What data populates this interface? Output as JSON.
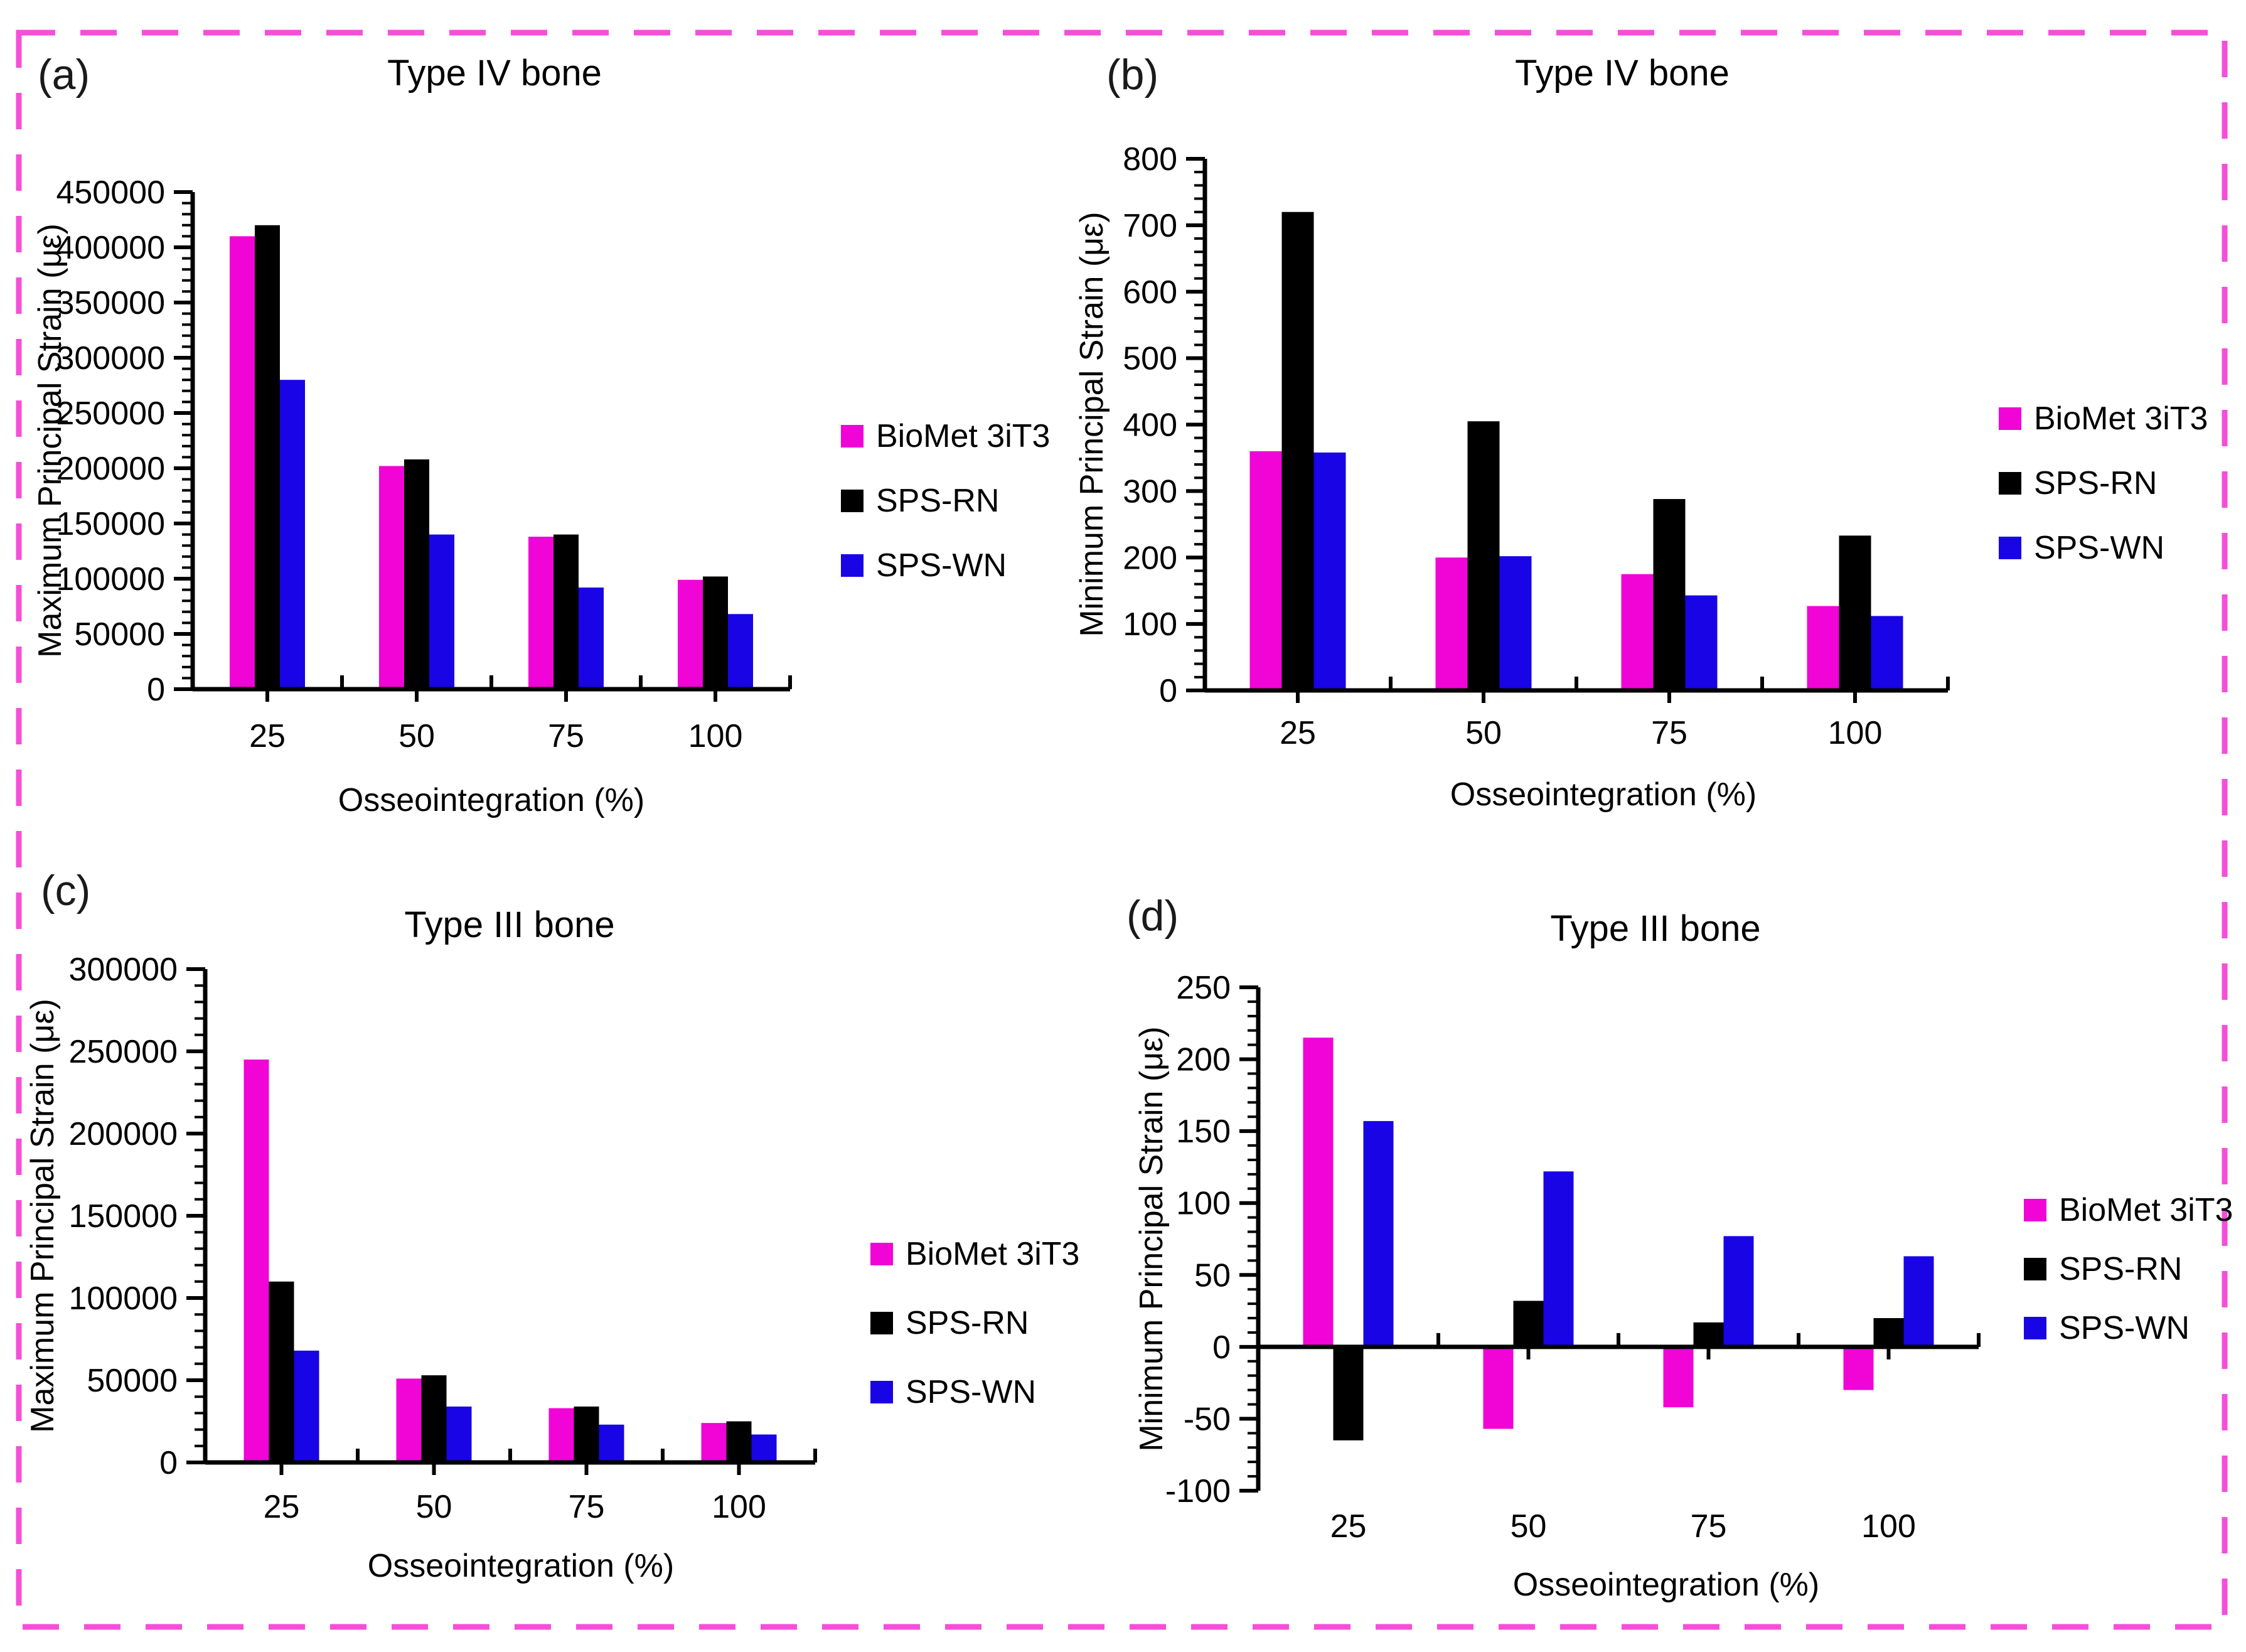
{
  "figure": {
    "background": "#ffffff",
    "border_color": "#f54fd9",
    "legend": {
      "items": [
        {
          "label": "BioMet 3iT3",
          "color": "#f004d6"
        },
        {
          "label": "SPS-RN",
          "color": "#000000"
        },
        {
          "label": "SPS-WN",
          "color": "#1804e4"
        }
      ]
    }
  },
  "chart_data": [
    {
      "type": "bar",
      "panel_label": "(a)",
      "title": "Type IV bone",
      "xlabel": "Osseointegration (%)",
      "ylabel": "Maximum Principal Strain (με)",
      "ylim": [
        0,
        450000
      ],
      "ytick_step": 50000,
      "minor_divisions": 5,
      "grid": false,
      "legend_position": "right",
      "categories": [
        "25",
        "50",
        "75",
        "100"
      ],
      "series": [
        {
          "name": "BioMet 3iT3",
          "color": "#f004d6",
          "values": [
            410000,
            202000,
            138000,
            99000
          ]
        },
        {
          "name": "SPS-RN",
          "color": "#000000",
          "values": [
            420000,
            208000,
            140000,
            102000
          ]
        },
        {
          "name": "SPS-WN",
          "color": "#1804e4",
          "values": [
            280000,
            140000,
            92000,
            68000
          ]
        }
      ]
    },
    {
      "type": "bar",
      "panel_label": "(b)",
      "title": "Type IV bone",
      "xlabel": "Osseointegration (%)",
      "ylabel": "Minimum Principal Strain (με)",
      "ylim": [
        0,
        800
      ],
      "ytick_step": 100,
      "minor_divisions": 5,
      "grid": false,
      "legend_position": "right",
      "categories": [
        "25",
        "50",
        "75",
        "100"
      ],
      "series": [
        {
          "name": "BioMet 3iT3",
          "color": "#f004d6",
          "values": [
            360,
            200,
            175,
            127
          ]
        },
        {
          "name": "SPS-RN",
          "color": "#000000",
          "values": [
            720,
            405,
            288,
            233
          ]
        },
        {
          "name": "SPS-WN",
          "color": "#1804e4",
          "values": [
            358,
            202,
            143,
            112
          ]
        }
      ]
    },
    {
      "type": "bar",
      "panel_label": "(c)",
      "title": "Type III bone",
      "xlabel": "Osseointegration (%)",
      "ylabel": "Maximum Principal Strain (με)",
      "ylim": [
        0,
        300000
      ],
      "ytick_step": 50000,
      "minor_divisions": 5,
      "grid": false,
      "legend_position": "right",
      "categories": [
        "25",
        "50",
        "75",
        "100"
      ],
      "series": [
        {
          "name": "BioMet 3iT3",
          "color": "#f004d6",
          "values": [
            245000,
            51000,
            33000,
            24000
          ]
        },
        {
          "name": "SPS-RN",
          "color": "#000000",
          "values": [
            110000,
            53000,
            34000,
            25000
          ]
        },
        {
          "name": "SPS-WN",
          "color": "#1804e4",
          "values": [
            68000,
            34000,
            23000,
            17000
          ]
        }
      ]
    },
    {
      "type": "bar",
      "panel_label": "(d)",
      "title": "Type III bone",
      "xlabel": "Osseointegration (%)",
      "ylabel": "Minimum Principal Strain (με)",
      "ylim": [
        -100,
        250
      ],
      "ytick_step": 50,
      "minor_divisions": 5,
      "grid": false,
      "legend_position": "right",
      "categories": [
        "25",
        "50",
        "75",
        "100"
      ],
      "series": [
        {
          "name": "BioMet 3iT3",
          "color": "#f004d6",
          "values": [
            215,
            -57,
            -42,
            -30
          ]
        },
        {
          "name": "SPS-RN",
          "color": "#000000",
          "values": [
            -65,
            32,
            17,
            20
          ]
        },
        {
          "name": "SPS-WN",
          "color": "#1804e4",
          "values": [
            157,
            122,
            77,
            63
          ]
        }
      ]
    }
  ]
}
